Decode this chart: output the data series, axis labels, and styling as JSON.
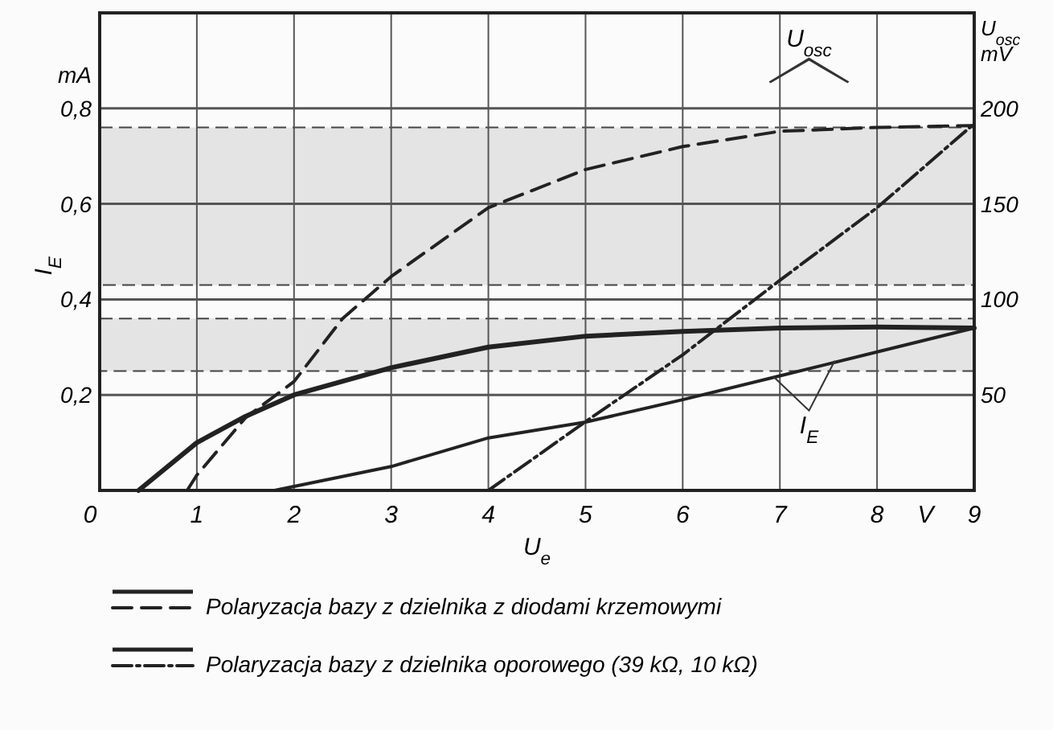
{
  "chart_data": {
    "type": "line",
    "xlabel": "U$_{e}$",
    "ylabel": "I$_{E}$",
    "y2label": "U$_{osc}$ mV",
    "annotations": [
      "mA",
      "V",
      "U$_{osc}$",
      "I$_{E}$"
    ],
    "xlim": [
      0,
      9
    ],
    "xticks": [
      0,
      1,
      2,
      3,
      4,
      5,
      6,
      7,
      8,
      9
    ],
    "ylim": [
      0,
      1
    ],
    "yticks": [
      {
        "value": 0.2,
        "label": "0,2"
      },
      {
        "value": 0.4,
        "label": "0,4"
      },
      {
        "value": 0.6,
        "label": "0,6"
      },
      {
        "value": 0.8,
        "label": "0,8"
      }
    ],
    "y2lim": [
      0,
      250
    ],
    "y2ticks": [
      50,
      100,
      150,
      200
    ],
    "grid": true,
    "legend": "bottom",
    "marker": "none",
    "bands": [
      {
        "axis": "y",
        "from": 0.43,
        "to": 0.76,
        "color": "#e4e4e4"
      },
      {
        "axis": "y",
        "from": 0.25,
        "to": 0.36,
        "color": "#e4e4e4"
      }
    ],
    "series": [
      {
        "color": "#222222",
        "line_style": "solid",
        "x": [
          0.4,
          1,
          1.5,
          2,
          3,
          4,
          5,
          6,
          7,
          8,
          9
        ],
        "values": [
          0,
          0.1,
          0.155,
          0.2,
          0.257,
          0.3,
          0.323,
          0.333,
          0.34,
          0.342,
          0.34
        ]
      },
      {
        "color": "#222222",
        "line_style": "solid",
        "x": [
          1.8,
          3,
          4,
          5,
          6,
          7,
          8,
          9
        ],
        "values": [
          0,
          0.05,
          0.11,
          0.143,
          0.19,
          0.24,
          0.29,
          0.34
        ]
      },
      {
        "name": "Polaryzacja bazy z dzielnika z diodami krzemowymi",
        "color": "#222222",
        "line_style": "dashed",
        "axis": "y2",
        "x": [
          0.9,
          1,
          1.5,
          2,
          2.5,
          3,
          4,
          5,
          6,
          7,
          8,
          9
        ],
        "values": [
          0,
          8,
          38,
          57,
          90,
          112,
          148,
          168,
          180,
          188,
          190,
          191
        ]
      },
      {
        "name": "Polaryzacja bazy z dzielnika oporowego (39 kΩ, 10 kΩ)",
        "color": "#222222",
        "line_style": "dotted",
        "axis": "y2",
        "x": [
          4,
          5,
          6,
          7,
          8,
          9
        ],
        "values": [
          0,
          36,
          71,
          110,
          148,
          192
        ]
      }
    ]
  }
}
